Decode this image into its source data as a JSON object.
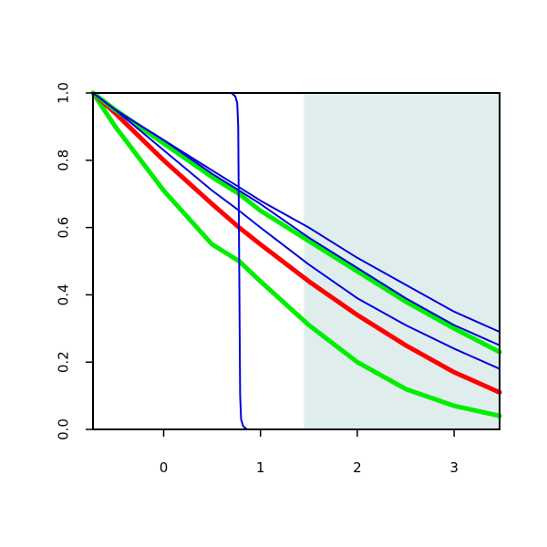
{
  "chart_data": {
    "type": "line",
    "title": "",
    "xlabel": "",
    "ylabel": "",
    "xlim": [
      -0.73,
      3.47
    ],
    "ylim": [
      0,
      1
    ],
    "x_ticks": [
      0,
      1,
      2,
      3
    ],
    "y_ticks": [
      0,
      0.2,
      0.4,
      0.6,
      0.8,
      1
    ],
    "x_tick_labels": [
      "0",
      "1",
      "2",
      "3"
    ],
    "y_tick_labels": [
      "0.0",
      "0.2",
      "0.4",
      "0.6",
      "0.8",
      "1.0"
    ],
    "grid": false,
    "legend": "none",
    "shaded_region": {
      "x_from": 1.45,
      "x_to": 3.47,
      "color": "#dfeded"
    },
    "series": [
      {
        "color": "#00ee00",
        "width": "thick",
        "x": [
          -0.73,
          -0.5,
          0.0,
          0.5,
          0.78,
          1.0,
          1.5,
          2.0,
          2.5,
          3.0,
          3.47
        ],
        "y": [
          1.0,
          0.9,
          0.71,
          0.55,
          0.5,
          0.44,
          0.31,
          0.2,
          0.12,
          0.07,
          0.04
        ]
      },
      {
        "color": "#ff0000",
        "width": "thick",
        "x": [
          -0.73,
          -0.5,
          0.0,
          0.5,
          0.78,
          1.0,
          1.5,
          2.0,
          2.5,
          3.0,
          3.47
        ],
        "y": [
          1.0,
          0.94,
          0.8,
          0.67,
          0.6,
          0.55,
          0.44,
          0.34,
          0.25,
          0.17,
          0.11
        ]
      },
      {
        "color": "#00ee00",
        "width": "thick",
        "x": [
          -0.73,
          -0.5,
          0.0,
          0.5,
          0.78,
          1.0,
          1.5,
          2.0,
          2.5,
          3.0,
          3.47
        ],
        "y": [
          1.0,
          0.95,
          0.85,
          0.75,
          0.7,
          0.65,
          0.56,
          0.47,
          0.38,
          0.3,
          0.23
        ]
      },
      {
        "color": "#0000dd",
        "width": "thin",
        "x": [
          -0.73,
          -0.5,
          0.0,
          0.5,
          0.78,
          1.0,
          1.5,
          2.0,
          2.5,
          3.0,
          3.47
        ],
        "y": [
          1.0,
          0.95,
          0.83,
          0.71,
          0.65,
          0.6,
          0.49,
          0.39,
          0.31,
          0.24,
          0.18
        ]
      },
      {
        "color": "#0000dd",
        "width": "thin",
        "x": [
          -0.73,
          -0.5,
          0.0,
          0.5,
          0.78,
          1.0,
          1.5,
          2.0,
          2.5,
          3.0,
          3.47
        ],
        "y": [
          1.0,
          0.95,
          0.86,
          0.76,
          0.71,
          0.67,
          0.57,
          0.48,
          0.39,
          0.31,
          0.25
        ]
      },
      {
        "color": "#0000dd",
        "width": "thin",
        "x": [
          -0.73,
          -0.5,
          0.0,
          0.5,
          0.78,
          1.0,
          1.5,
          2.0,
          2.5,
          3.0,
          3.47
        ],
        "y": [
          1.0,
          0.95,
          0.86,
          0.77,
          0.72,
          0.68,
          0.6,
          0.51,
          0.43,
          0.35,
          0.29
        ]
      },
      {
        "color": "#0000dd",
        "width": "thin",
        "x": [
          -0.73,
          0.0,
          0.5,
          0.7,
          0.74,
          0.76,
          0.77,
          0.78,
          0.79,
          0.8,
          0.82,
          0.86,
          1.0,
          2.0,
          3.47
        ],
        "y": [
          1.0,
          1.0,
          1.0,
          1.0,
          0.99,
          0.97,
          0.9,
          0.5,
          0.1,
          0.03,
          0.01,
          0.0,
          0.0,
          0.0,
          0.0
        ]
      }
    ]
  }
}
